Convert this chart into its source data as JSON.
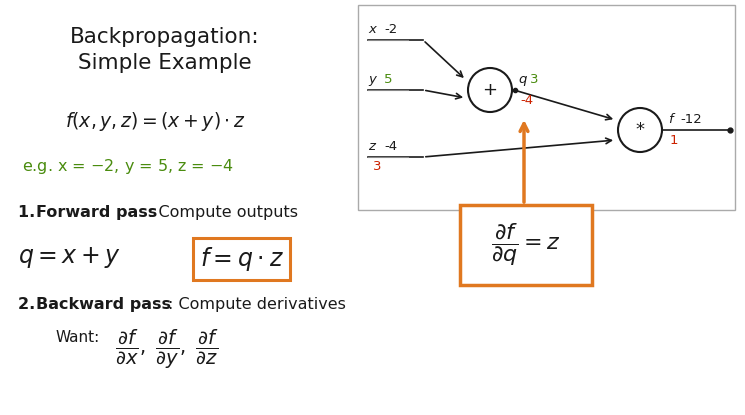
{
  "bg_color": "#ffffff",
  "black": "#1a1a1a",
  "green_color": "#4a8c0f",
  "red_color": "#cc2200",
  "orange_color": "#e07820",
  "node_x_val": "-2",
  "node_y_val": "5",
  "node_z_val": "-4",
  "node_z_grad": "3",
  "node_q_val": "3",
  "node_q_grad": "-4",
  "node_f_val": "-12",
  "node_f_grad": "1"
}
